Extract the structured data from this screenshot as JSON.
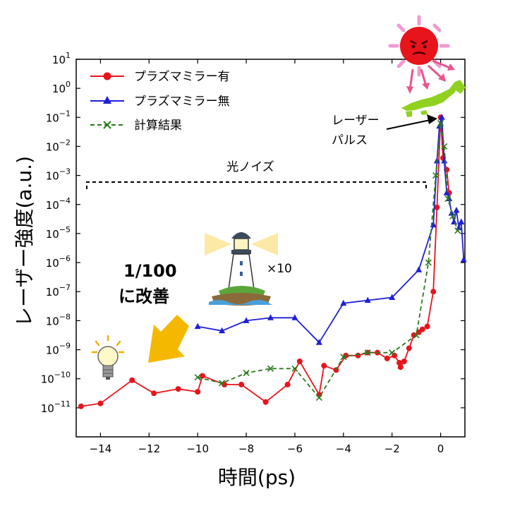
{
  "chart_data": {
    "type": "line",
    "xlabel": "時間(ps)",
    "ylabel": "レーザー強度(a.u.)",
    "xlim": [
      -15,
      1
    ],
    "ylim": [
      -11,
      2
    ],
    "yscale": "log",
    "x_ticks": [
      "−14",
      "−12",
      "−10",
      "−8",
      "−6",
      "−4",
      "−2",
      "0"
    ],
    "y_ticks": [
      {
        "base": "10",
        "exp": "1"
      },
      {
        "base": "10",
        "exp": "0"
      },
      {
        "base": "10",
        "exp": "−1"
      },
      {
        "base": "10",
        "exp": "−2"
      },
      {
        "base": "10",
        "exp": "−3"
      },
      {
        "base": "10",
        "exp": "−4"
      },
      {
        "base": "10",
        "exp": "−5"
      },
      {
        "base": "10",
        "exp": "−6"
      },
      {
        "base": "10",
        "exp": "−7"
      },
      {
        "base": "10",
        "exp": "−8"
      },
      {
        "base": "10",
        "exp": "−9"
      },
      {
        "base": "10",
        "exp": "−10"
      },
      {
        "base": "10",
        "exp": "−11"
      }
    ],
    "legend_position": "top-left",
    "series": [
      {
        "name": "プラズマミラー有",
        "color": "#e8141c",
        "marker": "circle",
        "dash": "solid",
        "x": [
          -14.8,
          -14.0,
          -12.7,
          -11.8,
          -10.8,
          -10.0,
          -9.8,
          -8.9,
          -8.2,
          -7.2,
          -6.3,
          -5.8,
          -5.0,
          -4.8,
          -4.3,
          -3.9,
          -3.4,
          -3.0,
          -2.6,
          -2.2,
          -1.9,
          -1.7,
          -1.65,
          -1.5,
          -1.3,
          -1.1,
          -0.9,
          -0.75,
          -0.55,
          -0.3,
          -0.15,
          0.0,
          0.1,
          0.25,
          0.35
        ],
        "y": [
          -9.95,
          -9.85,
          -9.05,
          -9.5,
          -9.35,
          -9.45,
          -8.9,
          -9.2,
          -9.2,
          -9.8,
          -9.2,
          -8.4,
          -9.55,
          -8.55,
          -8.7,
          -8.2,
          -8.2,
          -8.1,
          -8.1,
          -8.3,
          -8.2,
          -8.45,
          -8.6,
          -8.4,
          -7.95,
          -7.5,
          -7.4,
          -7.3,
          -7.2,
          -6.0,
          -3.1,
          0.0,
          -1.4,
          -1.8,
          -2.6
        ]
      },
      {
        "name": "プラズマミラー無",
        "color": "#1f1fd6",
        "marker": "triangle",
        "dash": "solid",
        "x": [
          -10.0,
          -9.0,
          -8.0,
          -7.0,
          -6.0,
          -5.0,
          -4.0,
          -3.0,
          -2.0,
          -0.9,
          -0.3,
          -0.15,
          -0.05,
          0.05,
          0.15,
          0.25,
          0.35,
          0.45,
          0.55,
          0.65,
          0.75,
          0.85,
          0.95
        ],
        "y": [
          -7.2,
          -7.35,
          -7.0,
          -6.9,
          -6.9,
          -7.75,
          -6.4,
          -6.3,
          -6.2,
          -5.25,
          -3.7,
          -1.5,
          -0.3,
          0.0,
          -1.5,
          -2.6,
          -2.8,
          -3.3,
          -3.6,
          -3.2,
          -3.8,
          -3.6,
          -4.9
        ]
      },
      {
        "name": "計算結果",
        "color": "#2a7a1e",
        "marker": "x",
        "dash": "dashed",
        "x": [
          -10.0,
          -9.0,
          -8.0,
          -7.0,
          -6.0,
          -5.0,
          -4.0,
          -3.0,
          -2.0,
          -1.0,
          -0.5,
          -0.2,
          0.0,
          0.15,
          0.3,
          0.5,
          0.7
        ],
        "y": [
          -8.95,
          -9.15,
          -8.8,
          -8.65,
          -8.65,
          -9.65,
          -8.25,
          -8.1,
          -8.1,
          -7.5,
          -5.0,
          -2.0,
          -0.2,
          -1.0,
          -2.8,
          -3.4,
          -3.9
        ]
      }
    ]
  },
  "annotations": {
    "noise_label": "光ノイズ",
    "pulse_label_line1": "レーザー",
    "pulse_label_line2": "パルス",
    "improve_line1": "1/100",
    "improve_line2": "に改善",
    "times_ten": "×10"
  },
  "icons": [
    "sun-icon",
    "japan-map-icon",
    "lighthouse-icon",
    "light-bulb-icon",
    "orange-arrow-icon"
  ]
}
